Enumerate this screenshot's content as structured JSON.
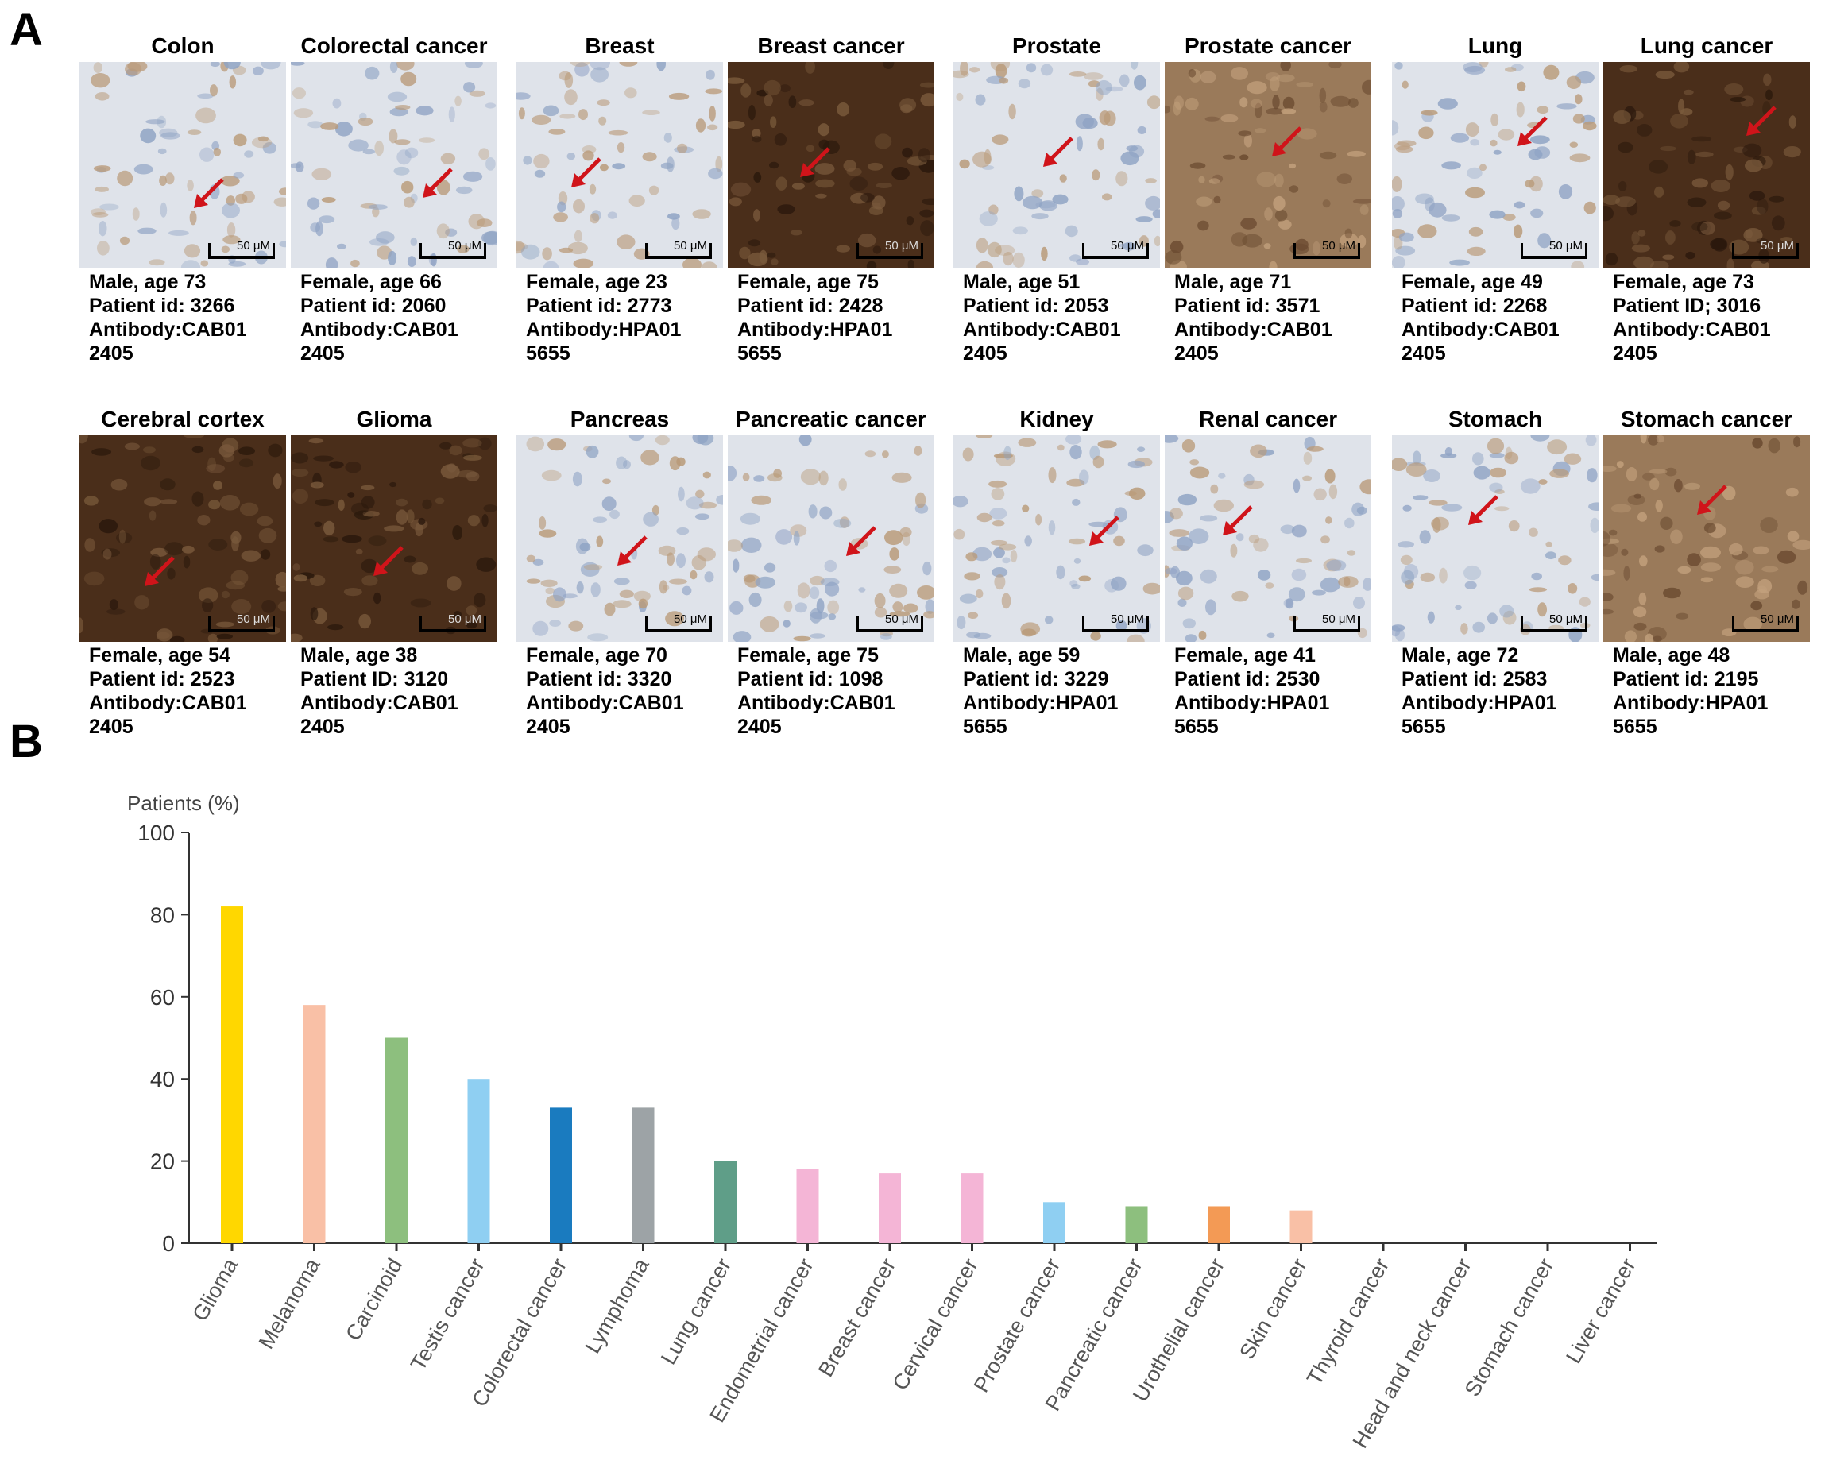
{
  "panel_labels": {
    "a": "A",
    "b": "B"
  },
  "tissue_panels": [
    {
      "title": "Colon",
      "stain": "light",
      "caption": [
        "Male, age 73",
        "Patient id: 3266",
        "Antibody:CAB01",
        "2405"
      ],
      "scale": "50 μM"
    },
    {
      "title": "Colorectal cancer",
      "stain": "light",
      "caption": [
        "Female, age 66",
        "Patient id: 2060",
        "Antibody:CAB01",
        "2405"
      ],
      "scale": "50 μM"
    },
    {
      "title": "Breast",
      "stain": "light",
      "caption": [
        "Female, age 23",
        "Patient id: 2773",
        "Antibody:HPA01",
        "5655"
      ],
      "scale": "50 μM"
    },
    {
      "title": "Breast cancer",
      "stain": "dark",
      "caption": [
        "Female, age 75",
        "Patient id: 2428",
        "Antibody:HPA01",
        "5655"
      ],
      "scale": "50 μM"
    },
    {
      "title": "Prostate",
      "stain": "light",
      "caption": [
        "Male, age 51",
        "Patient id: 2053",
        "Antibody:CAB01",
        "2405"
      ],
      "scale": "50 μM"
    },
    {
      "title": "Prostate cancer",
      "stain": "medium",
      "caption": [
        "Male, age 71",
        "Patient id: 3571",
        "Antibody:CAB01",
        "2405"
      ],
      "scale": "50 μM"
    },
    {
      "title": "Lung",
      "stain": "light",
      "caption": [
        "Female, age 49",
        "Patient id: 2268",
        "Antibody:CAB01",
        "2405"
      ],
      "scale": "50 μM"
    },
    {
      "title": "Lung cancer",
      "stain": "dark",
      "caption": [
        "Female, age 73",
        "Patient ID; 3016",
        "Antibody:CAB01",
        "2405"
      ],
      "scale": "50 μM"
    },
    {
      "title": "Cerebral cortex",
      "stain": "dark",
      "caption": [
        "Female, age 54",
        "Patient id: 2523",
        "Antibody:CAB01",
        "2405"
      ],
      "scale": "50 μM"
    },
    {
      "title": "Glioma",
      "stain": "dark",
      "caption": [
        "Male, age 38",
        "Patient ID: 3120",
        "Antibody:CAB01",
        "2405"
      ],
      "scale": "50 μM"
    },
    {
      "title": "Pancreas",
      "stain": "light",
      "caption": [
        "Female, age 70",
        "Patient id: 3320",
        "Antibody:CAB01",
        "2405"
      ],
      "scale": "50 μM"
    },
    {
      "title": "Pancreatic cancer",
      "stain": "light",
      "caption": [
        "Female, age 75",
        "Patient id: 1098",
        "Antibody:CAB01",
        "2405"
      ],
      "scale": "50 μM"
    },
    {
      "title": "Kidney",
      "stain": "light",
      "caption": [
        "Male, age 59",
        "Patient id: 3229",
        "Antibody:HPA01",
        "5655"
      ],
      "scale": "50 μM"
    },
    {
      "title": "Renal cancer",
      "stain": "light",
      "caption": [
        "Female, age 41",
        "Patient id: 2530",
        "Antibody:HPA01",
        "5655"
      ],
      "scale": "50 μM"
    },
    {
      "title": "Stomach",
      "stain": "light",
      "caption": [
        "Male, age 72",
        "Patient id: 2583",
        "Antibody:HPA01",
        "5655"
      ],
      "scale": "50 μM"
    },
    {
      "title": "Stomach cancer",
      "stain": "medium",
      "caption": [
        "Male, age 48",
        "Patient id: 2195",
        "Antibody:HPA01",
        "5655"
      ],
      "scale": "50 μM"
    }
  ],
  "chart_data": {
    "type": "bar",
    "title": "",
    "ylabel": "Patients (%)",
    "xlabel": "",
    "ylim": [
      0,
      100
    ],
    "yticks": [
      0,
      20,
      40,
      60,
      80,
      100
    ],
    "grid": false,
    "categories": [
      "Glioma",
      "Melanoma",
      "Carcinoid",
      "Testis cancer",
      "Colorectal cancer",
      "Lymphoma",
      "Lung cancer",
      "Endometrial cancer",
      "Breast cancer",
      "Cervical cancer",
      "Prostate cancer",
      "Pancreatic cancer",
      "Urothelial cancer",
      "Skin cancer",
      "Thyroid cancer",
      "Head and neck cancer",
      "Stomach cancer",
      "Liver cancer"
    ],
    "values": [
      82,
      58,
      50,
      40,
      33,
      33,
      20,
      18,
      17,
      17,
      10,
      9,
      9,
      8,
      0,
      0,
      0,
      0
    ],
    "colors": [
      "#FFD700",
      "#F9C0A6",
      "#8DBF7E",
      "#8FCFF2",
      "#1A7BBF",
      "#9DA3A6",
      "#5F9E88",
      "#F4B5D6",
      "#F4B5D6",
      "#F4B5D6",
      "#8FCFF2",
      "#8DBF7E",
      "#F39A55",
      "#F9C0A6",
      "#000000",
      "#000000",
      "#000000",
      "#000000"
    ]
  }
}
